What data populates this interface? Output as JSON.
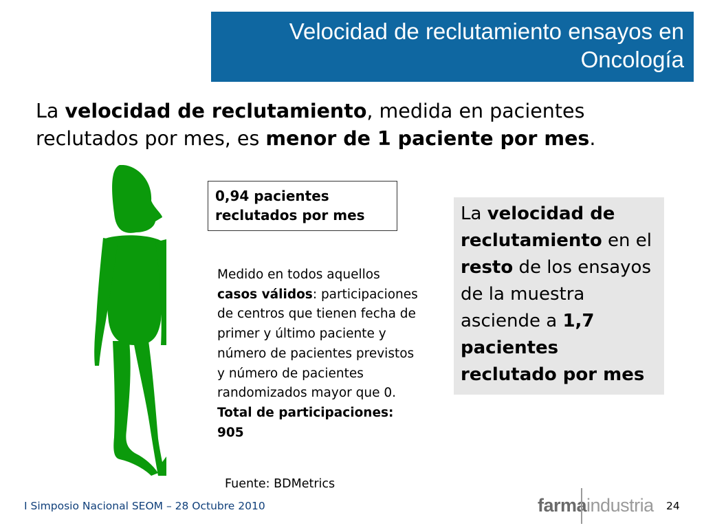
{
  "slide": {
    "title_line1": "Velocidad de reclutamiento ensayos en",
    "title_line2": "Oncología",
    "lead": {
      "p1": "La ",
      "b1": "velocidad de reclutamiento",
      "p2": ", medida en pacientes reclutados por mes, es ",
      "b2": "menor de 1 paciente por mes",
      "p3": "."
    },
    "stat_box": {
      "line1": "0,94 pacientes",
      "line2": "reclutados por mes"
    },
    "description": {
      "p1": "Medido en todos aquellos ",
      "b1": "casos válidos",
      "p2": ": participaciones de centros que tienen fecha de primer y último paciente y número de pacientes previstos y número de pacientes randomizados mayor que 0. ",
      "b2": "Total de participaciones: 905"
    },
    "gray_box": {
      "p1": "La ",
      "b1": "velocidad de reclutamiento",
      "p2": " en el ",
      "b2": "resto",
      "p3": " de los ensayos de la muestra asciende a ",
      "b3": "1,7 pacientes reclutado por mes"
    },
    "source": "Fuente: BDMetrics"
  },
  "footer": {
    "event": "I Simposio Nacional SEOM – 28 Octubre 2010",
    "logo_bold": "farma",
    "logo_light": "industria",
    "page_number": "24"
  },
  "colors": {
    "title_bg": "#0f67a1",
    "figure_green": "#0b9a0b",
    "gray_box_bg": "#e6e6e6"
  }
}
